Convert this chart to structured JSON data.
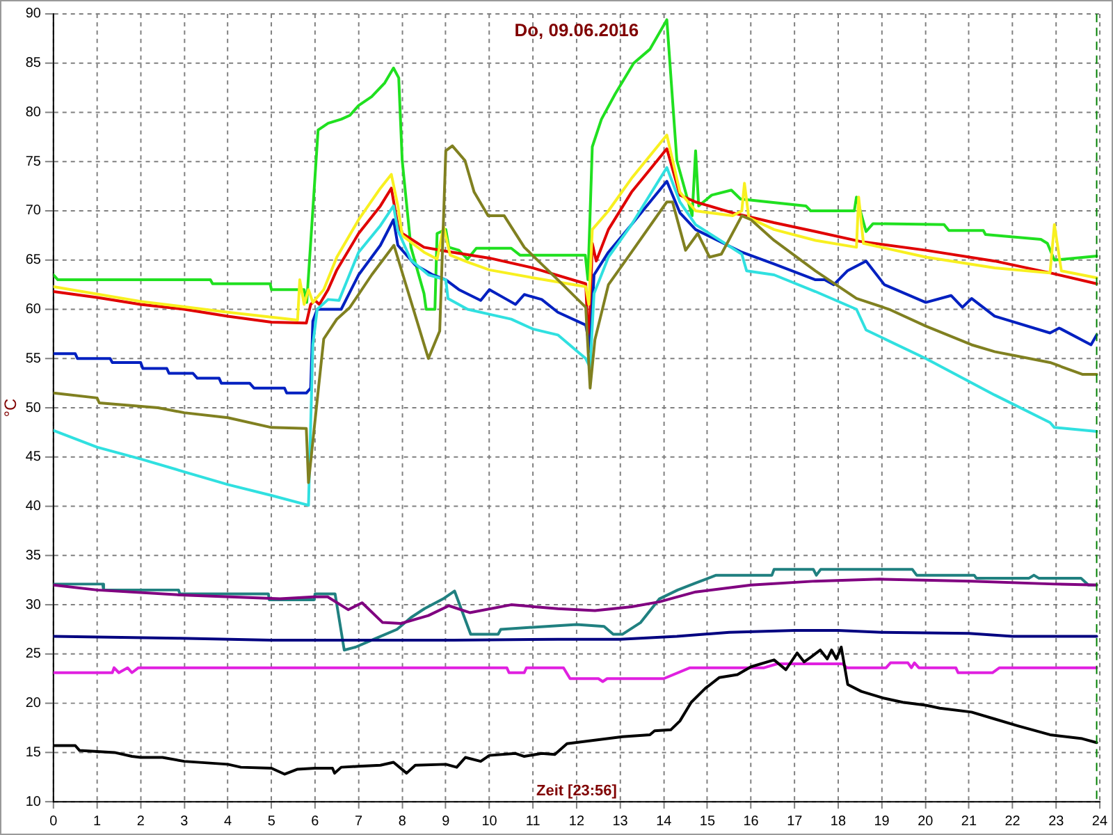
{
  "chart_data": {
    "type": "line",
    "title": "Do, 09.06.2016",
    "xlabel": "Zeit [23:56]",
    "ylabel": "°C",
    "xlim": [
      0,
      24
    ],
    "xticks": [
      0,
      1,
      2,
      3,
      4,
      5,
      6,
      7,
      8,
      9,
      10,
      11,
      12,
      13,
      14,
      15,
      16,
      17,
      18,
      19,
      20,
      21,
      22,
      23,
      24
    ],
    "ylim": [
      10,
      90
    ],
    "yticks": [
      10,
      15,
      20,
      25,
      30,
      35,
      40,
      45,
      50,
      55,
      60,
      65,
      70,
      75,
      80,
      85,
      90
    ],
    "grid": true,
    "marker": "none",
    "line_style": "solid",
    "ref_lines": [
      {
        "axis": "x",
        "value": 23.93,
        "color": "#008000",
        "line_style": "dashed"
      }
    ],
    "series": [
      {
        "color": "#000000",
        "x": [
          0,
          0.5,
          0.6,
          1.0,
          1.4,
          1.8,
          2.0,
          2.5,
          3.0,
          4.0,
          4.3,
          5.0,
          5.3,
          5.6,
          6.0,
          6.4,
          6.45,
          6.6,
          7.0,
          7.5,
          7.8,
          8.1,
          8.3,
          9.0,
          9.25,
          9.45,
          9.8,
          10.0,
          10.6,
          10.8,
          11.2,
          11.5,
          11.78,
          13.05,
          13.68,
          13.79,
          14.16,
          14.37,
          14.63,
          14.95,
          15.27,
          15.69,
          16.0,
          16.53,
          16.8,
          17.06,
          17.22,
          17.38,
          17.59,
          17.75,
          17.85,
          17.96,
          18.07,
          18.22,
          18.53,
          19.06,
          19.48,
          20.01,
          20.33,
          21.06,
          21.59,
          22.12,
          22.86,
          23.6,
          23.93
        ],
        "values": [
          15.7,
          15.7,
          15.2,
          15.1,
          15.0,
          14.6,
          14.5,
          14.5,
          14.1,
          13.8,
          13.5,
          13.4,
          12.8,
          13.3,
          13.4,
          13.4,
          12.9,
          13.5,
          13.6,
          13.7,
          14.0,
          12.9,
          13.7,
          13.8,
          13.5,
          14.5,
          14.1,
          14.7,
          14.9,
          14.6,
          14.9,
          14.8,
          15.9,
          16.6,
          16.8,
          17.2,
          17.3,
          18.2,
          20.1,
          21.5,
          22.6,
          22.9,
          23.7,
          24.4,
          23.4,
          25.1,
          24.2,
          24.7,
          25.4,
          24.5,
          25.4,
          24.5,
          25.7,
          21.9,
          21.2,
          20.5,
          20.1,
          19.8,
          19.5,
          19.1,
          18.4,
          17.7,
          16.8,
          16.4,
          16.0
        ]
      },
      {
        "color": "#e020e0",
        "x": [
          0,
          1.35,
          1.39,
          1.5,
          1.7,
          1.8,
          1.95,
          10.4,
          10.45,
          10.8,
          10.85,
          11.7,
          11.85,
          12.5,
          12.6,
          12.7,
          14.0,
          14.6,
          16.3,
          16.6,
          18.1,
          18.2,
          19.1,
          19.2,
          19.6,
          19.68,
          19.75,
          19.85,
          20.7,
          20.75,
          21.54,
          21.7,
          23.93
        ],
        "values": [
          23.1,
          23.1,
          23.6,
          23.1,
          23.6,
          23.1,
          23.6,
          23.6,
          23.1,
          23.1,
          23.6,
          23.6,
          22.5,
          22.5,
          22.2,
          22.5,
          22.5,
          23.6,
          23.6,
          24,
          24,
          23.6,
          23.6,
          24.1,
          24.1,
          23.6,
          24.1,
          23.6,
          23.6,
          23.1,
          23.1,
          23.6,
          23.6
        ]
      },
      {
        "color": "#000080",
        "x": [
          0,
          1.3,
          2.9,
          5,
          9.2,
          11.57,
          13,
          14.3,
          15.5,
          17,
          18,
          19,
          21,
          22,
          23.93
        ],
        "values": [
          26.8,
          26.7,
          26.6,
          26.4,
          26.4,
          26.5,
          26.5,
          26.8,
          27.2,
          27.4,
          27.4,
          27.2,
          27.1,
          26.8,
          26.8
        ]
      },
      {
        "color": "#800080",
        "x": [
          0,
          1,
          2.9,
          5.2,
          5.97,
          6.29,
          6.76,
          7.08,
          7.55,
          7.97,
          8.6,
          9.07,
          9.55,
          10.5,
          11.57,
          12.42,
          13.26,
          13.9,
          14.73,
          16,
          17.48,
          18.95,
          21.06,
          22.96,
          23.93
        ],
        "values": [
          32,
          31.5,
          31,
          30.6,
          30.8,
          30.8,
          29.5,
          30.2,
          28.2,
          28.1,
          28.9,
          29.9,
          29.2,
          30,
          29.6,
          29.4,
          29.8,
          30.3,
          31.3,
          32,
          32.4,
          32.6,
          32.4,
          32.1,
          32
        ]
      },
      {
        "color": "#208080",
        "x": [
          0,
          1.13,
          1.15,
          2.87,
          2.9,
          4.93,
          4.95,
          5.98,
          6.0,
          6.46,
          6.67,
          6.93,
          7.35,
          7.88,
          8.2,
          8.51,
          8.94,
          9.2,
          9.57,
          10.2,
          10.26,
          12.0,
          12.63,
          12.84,
          13.05,
          13.47,
          13.9,
          14.32,
          14.73,
          15.2,
          16.48,
          16.53,
          17.43,
          17.5,
          17.6,
          19.7,
          19.8,
          21.12,
          21.17,
          22.38,
          22.49,
          22.6,
          23.57,
          23.74,
          23.93
        ],
        "values": [
          32.1,
          32.1,
          31.5,
          31.5,
          31.1,
          31.1,
          30.5,
          30.5,
          31.1,
          31.1,
          25.4,
          25.7,
          26.5,
          27.5,
          28.7,
          29.6,
          30.6,
          31.4,
          27,
          27,
          27.5,
          28,
          27.8,
          27,
          27,
          28.2,
          30.6,
          31.5,
          32.2,
          33,
          33,
          33.6,
          33.6,
          33,
          33.6,
          33.6,
          33,
          33,
          32.7,
          32.7,
          33,
          32.7,
          32.7,
          32,
          32
        ]
      },
      {
        "color": "#808020",
        "x": [
          0,
          1,
          1.05,
          2.4,
          3,
          4,
          5,
          5.8,
          5.85,
          6.05,
          6.2,
          6.5,
          6.8,
          7.3,
          7.81,
          8.6,
          8.86,
          9.0,
          9.15,
          9.44,
          9.65,
          9.97,
          10.34,
          10.8,
          11.57,
          12.21,
          12.31,
          12.42,
          12.73,
          13.26,
          14.07,
          14.2,
          14.5,
          14.78,
          15.05,
          15.32,
          15.79,
          16.0,
          16.53,
          17.48,
          18.42,
          19.17,
          20.01,
          21.06,
          21.59,
          22.86,
          23.6,
          23.93
        ],
        "values": [
          51.5,
          51,
          50.5,
          50,
          49.5,
          49,
          48,
          47.9,
          42.4,
          50.8,
          57,
          59,
          60.2,
          63.5,
          66.5,
          55,
          57.8,
          76.1,
          76.6,
          75.1,
          71.9,
          69.5,
          69.5,
          66.3,
          63,
          60.2,
          52,
          56.9,
          62.5,
          65.8,
          70.9,
          70.9,
          66,
          67.7,
          65.3,
          65.6,
          69.5,
          69.1,
          67,
          63.9,
          61.1,
          60,
          58.3,
          56.4,
          55.7,
          54.6,
          53.4,
          53.4
        ]
      },
      {
        "color": "#30e0e0",
        "x": [
          0,
          1,
          2,
          3,
          4,
          5,
          5.85,
          5.95,
          6.05,
          6.3,
          6.55,
          7.0,
          7.5,
          7.8,
          7.9,
          8.2,
          8.6,
          9.0,
          9.05,
          9.5,
          10,
          10.5,
          11,
          11.57,
          12.21,
          12.31,
          12.4,
          12.73,
          13.26,
          14.07,
          14.37,
          14.73,
          15.79,
          15.9,
          16.53,
          17.48,
          18.42,
          18.64,
          20.01,
          21.59,
          22.86,
          22.96,
          23.93
        ],
        "values": [
          47.7,
          46,
          44.8,
          43.5,
          42.2,
          41.1,
          40.1,
          56.4,
          60,
          61,
          60.9,
          65.8,
          68.5,
          70.5,
          68,
          65,
          63.5,
          63,
          61.1,
          60,
          59.5,
          59,
          58,
          57.4,
          55,
          54.1,
          61.6,
          65.3,
          68.6,
          74.4,
          70.9,
          68.6,
          65.6,
          63.9,
          63.5,
          61.8,
          60,
          57.9,
          55,
          51.3,
          48.5,
          48,
          47.6
        ]
      },
      {
        "color": "#0020c0",
        "x": [
          0,
          0.5,
          0.55,
          1.3,
          1.35,
          2,
          2.05,
          2.6,
          2.65,
          3.2,
          3.3,
          3.8,
          3.85,
          4.5,
          4.6,
          5.3,
          5.35,
          5.8,
          5.9,
          5.95,
          6.05,
          6.6,
          7.0,
          7.5,
          7.8,
          7.9,
          8.3,
          8.7,
          9.0,
          9.3,
          9.8,
          10.0,
          10.4,
          10.6,
          10.8,
          11.2,
          11.57,
          12.21,
          12.31,
          12.4,
          12.73,
          13.26,
          14.07,
          14.37,
          14.73,
          15.79,
          16.53,
          17.48,
          17.69,
          17.9,
          18.21,
          18.64,
          19.06,
          20.01,
          20.59,
          20.85,
          21.06,
          21.59,
          22.86,
          23.07,
          23.8,
          23.93
        ],
        "values": [
          55.5,
          55.5,
          55,
          55,
          54.6,
          54.6,
          54,
          54,
          53.5,
          53.5,
          53,
          53,
          52.5,
          52.5,
          52,
          52,
          51.5,
          51.5,
          52,
          58.8,
          60,
          60,
          63.5,
          66.5,
          69.1,
          66.5,
          64.5,
          63.5,
          63,
          62,
          60.9,
          62,
          61,
          60.5,
          61.5,
          61,
          59.7,
          58.4,
          56,
          63.5,
          65.8,
          68.6,
          73,
          69.8,
          68.1,
          65.8,
          64.6,
          63,
          63,
          62.5,
          63.9,
          64.9,
          62.5,
          60.7,
          61.4,
          60.2,
          61.1,
          59.3,
          57.6,
          58.1,
          56.4,
          57.4
        ]
      },
      {
        "color": "#f8f020",
        "x": [
          0,
          2,
          4,
          5.6,
          5.65,
          5.75,
          5.85,
          5.95,
          6.2,
          6.5,
          7.0,
          7.5,
          7.75,
          7.9,
          8.0,
          8.5,
          8.8,
          8.95,
          9.1,
          9.5,
          10,
          11,
          12.21,
          12.28,
          12.36,
          12.73,
          13.26,
          14.07,
          14.37,
          14.73,
          15.58,
          15.79,
          15.85,
          15.95,
          16.53,
          17.48,
          18.42,
          18.47,
          18.58,
          20.01,
          21.59,
          22.86,
          22.96,
          23.12,
          23.93
        ],
        "values": [
          62.3,
          60.8,
          59.7,
          58.9,
          63,
          60.5,
          62,
          60.7,
          62,
          65.3,
          69.1,
          72.3,
          73.7,
          70.5,
          67.5,
          65.8,
          65.1,
          68.4,
          65.5,
          64.8,
          64,
          63.2,
          62.3,
          60.5,
          68.1,
          70,
          73.3,
          77.7,
          71.9,
          70,
          69.5,
          70,
          72.8,
          69.3,
          68.1,
          67,
          66.3,
          71.4,
          66.7,
          65.3,
          64.2,
          63.7,
          68.6,
          63.9,
          63.2
        ]
      },
      {
        "color": "#e00000",
        "x": [
          0,
          1,
          2,
          3,
          4,
          5,
          5.8,
          5.9,
          6.0,
          6.1,
          6.3,
          6.5,
          7.0,
          7.5,
          7.75,
          7.9,
          8.0,
          8.5,
          9,
          10,
          11,
          12.21,
          12.28,
          12.36,
          12.45,
          12.73,
          13.26,
          14.07,
          14.37,
          14.73,
          15.58,
          16.53,
          17.48,
          18.5,
          20.01,
          21.59,
          22.86,
          23.93
        ],
        "values": [
          61.8,
          61.2,
          60.5,
          60,
          59.3,
          58.7,
          58.6,
          60.5,
          60.9,
          60.5,
          62,
          64,
          67.7,
          70.5,
          72.3,
          68.5,
          67.7,
          66.3,
          65.9,
          65.2,
          64.2,
          62.6,
          55.7,
          66.7,
          64.9,
          68.1,
          71.9,
          76.3,
          71.6,
          70.9,
          69.8,
          68.8,
          67.9,
          66.9,
          66,
          64.9,
          63.7,
          62.6
        ]
      },
      {
        "color": "#20e020",
        "x": [
          0,
          0.1,
          3.6,
          3.65,
          4.97,
          5.0,
          5.75,
          5.81,
          6.07,
          6.3,
          6.6,
          6.8,
          7.0,
          7.3,
          7.6,
          7.8,
          7.92,
          8.0,
          8.2,
          8.5,
          8.55,
          8.75,
          8.8,
          9.0,
          9.07,
          9.3,
          9.5,
          9.7,
          10.5,
          10.7,
          12.2,
          12.26,
          12.36,
          12.57,
          12.89,
          13.31,
          13.68,
          14.07,
          14.3,
          14.65,
          14.73,
          14.8,
          15.1,
          15.55,
          15.76,
          17.26,
          17.37,
          18.37,
          18.42,
          18.64,
          18.8,
          20.43,
          20.54,
          21.33,
          21.38,
          22.65,
          22.8,
          22.96,
          23.93
        ],
        "values": [
          63.5,
          63,
          63,
          62.6,
          62.6,
          62,
          62,
          60.7,
          78.2,
          78.9,
          79.3,
          79.7,
          80.7,
          81.6,
          83,
          84.5,
          83.5,
          75.1,
          66.3,
          61.6,
          60,
          60,
          67.7,
          68.1,
          66.3,
          66,
          65.1,
          66.2,
          66.2,
          65.5,
          65.5,
          63,
          76.5,
          79.3,
          81.9,
          85,
          86.4,
          89.4,
          75.1,
          69.5,
          76.1,
          70.5,
          71.6,
          72.1,
          71.2,
          70.5,
          70,
          70,
          71.4,
          67.9,
          68.7,
          68.6,
          68,
          68,
          67.6,
          67.1,
          66.7,
          65,
          65.4
        ]
      }
    ]
  }
}
